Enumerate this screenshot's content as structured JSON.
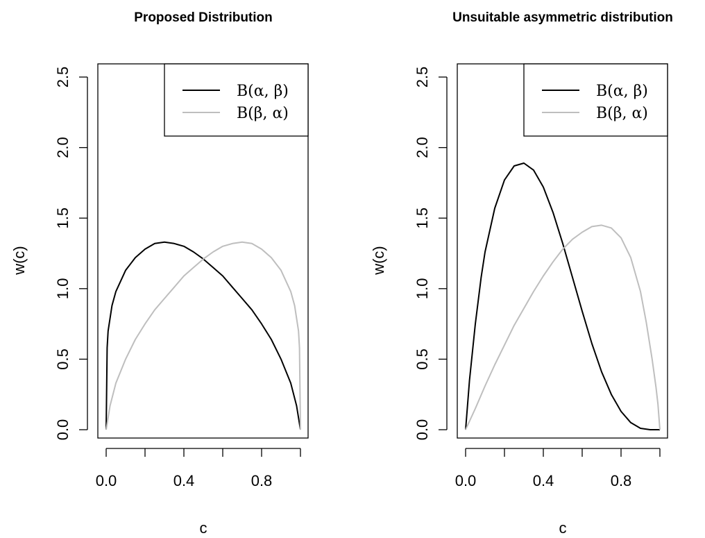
{
  "chart_data": [
    {
      "type": "line",
      "title": "Proposed Distribution",
      "xlabel": "c",
      "ylabel": "w(c)",
      "xlim": [
        0,
        1
      ],
      "ylim": [
        0,
        2.5
      ],
      "xticks": [
        0,
        0.2,
        0.4,
        0.6,
        0.8,
        1.0
      ],
      "xtick_labels": [
        "0.0",
        "",
        "0.4",
        "",
        "0.8",
        ""
      ],
      "yticks": [
        0,
        0.5,
        1.0,
        1.5,
        2.0,
        2.5
      ],
      "ytick_labels": [
        "0.0",
        "0.5",
        "1.0",
        "1.5",
        "2.0",
        "2.5"
      ],
      "legend_position": "top-right",
      "series": [
        {
          "name": "B(α, β)",
          "color": "#000000",
          "x": [
            0,
            0.005,
            0.01,
            0.03,
            0.05,
            0.1,
            0.15,
            0.2,
            0.25,
            0.3,
            0.35,
            0.4,
            0.45,
            0.5,
            0.55,
            0.6,
            0.65,
            0.7,
            0.75,
            0.8,
            0.85,
            0.9,
            0.95,
            0.98,
            1.0
          ],
          "y": [
            0,
            0.58,
            0.7,
            0.88,
            0.98,
            1.13,
            1.22,
            1.28,
            1.32,
            1.33,
            1.32,
            1.3,
            1.26,
            1.21,
            1.15,
            1.09,
            1.01,
            0.93,
            0.85,
            0.75,
            0.64,
            0.5,
            0.33,
            0.17,
            0
          ]
        },
        {
          "name": "B(β, α)",
          "color": "#bebebe",
          "x": [
            0,
            0.02,
            0.05,
            0.1,
            0.15,
            0.2,
            0.25,
            0.3,
            0.35,
            0.4,
            0.45,
            0.5,
            0.55,
            0.6,
            0.65,
            0.7,
            0.75,
            0.8,
            0.85,
            0.9,
            0.95,
            0.97,
            0.99,
            0.995,
            1.0
          ],
          "y": [
            0,
            0.17,
            0.33,
            0.5,
            0.64,
            0.75,
            0.85,
            0.93,
            1.01,
            1.09,
            1.15,
            1.21,
            1.26,
            1.3,
            1.32,
            1.33,
            1.32,
            1.28,
            1.22,
            1.13,
            0.98,
            0.88,
            0.7,
            0.58,
            0
          ]
        }
      ]
    },
    {
      "type": "line",
      "title": "Unsuitable asymmetric distribution",
      "xlabel": "c",
      "ylabel": "w(c)",
      "xlim": [
        0,
        1
      ],
      "ylim": [
        0,
        2.5
      ],
      "xticks": [
        0,
        0.2,
        0.4,
        0.6,
        0.8,
        1.0
      ],
      "xtick_labels": [
        "0.0",
        "",
        "0.4",
        "",
        "0.8",
        ""
      ],
      "yticks": [
        0,
        0.5,
        1.0,
        1.5,
        2.0,
        2.5
      ],
      "ytick_labels": [
        "0.0",
        "0.5",
        "1.0",
        "1.5",
        "2.0",
        "2.5"
      ],
      "legend_position": "top-right",
      "series": [
        {
          "name": "B(α, β)",
          "color": "#000000",
          "x": [
            0,
            0.02,
            0.05,
            0.08,
            0.1,
            0.15,
            0.2,
            0.25,
            0.3,
            0.35,
            0.4,
            0.45,
            0.5,
            0.55,
            0.6,
            0.65,
            0.7,
            0.75,
            0.8,
            0.85,
            0.9,
            0.95,
            1.0
          ],
          "y": [
            0,
            0.35,
            0.75,
            1.08,
            1.26,
            1.57,
            1.77,
            1.87,
            1.89,
            1.84,
            1.72,
            1.54,
            1.32,
            1.08,
            0.84,
            0.61,
            0.41,
            0.25,
            0.13,
            0.05,
            0.01,
            0.0,
            0
          ]
        },
        {
          "name": "B(β, α)",
          "color": "#bebebe",
          "x": [
            0,
            0.05,
            0.1,
            0.15,
            0.2,
            0.25,
            0.3,
            0.35,
            0.4,
            0.45,
            0.5,
            0.55,
            0.6,
            0.65,
            0.7,
            0.75,
            0.8,
            0.85,
            0.9,
            0.93,
            0.96,
            0.98,
            0.99,
            1.0
          ],
          "y": [
            0,
            0.15,
            0.31,
            0.46,
            0.6,
            0.74,
            0.86,
            0.98,
            1.09,
            1.19,
            1.28,
            1.35,
            1.4,
            1.44,
            1.45,
            1.43,
            1.36,
            1.22,
            0.98,
            0.76,
            0.5,
            0.3,
            0.18,
            0
          ]
        }
      ]
    }
  ]
}
